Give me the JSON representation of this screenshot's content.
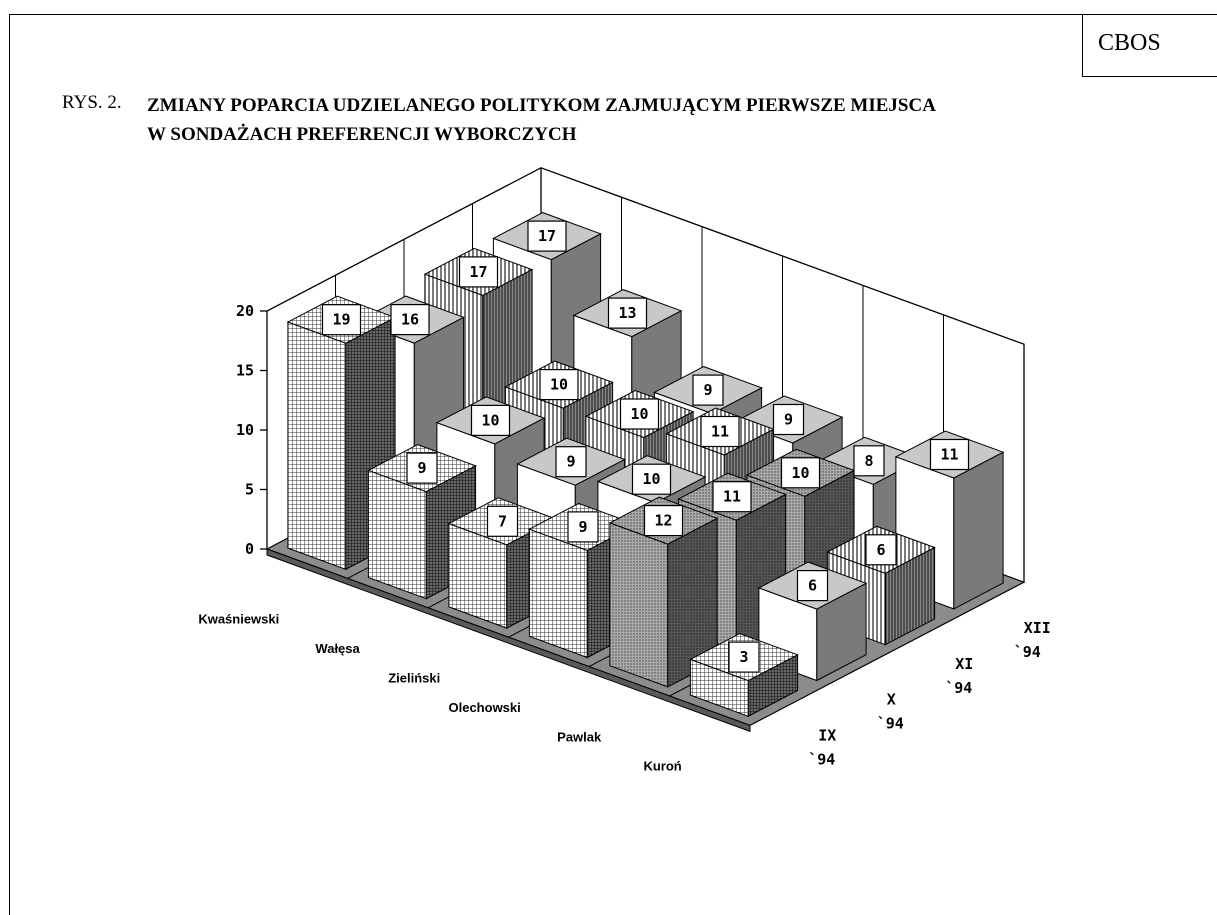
{
  "header": {
    "source": "CBOS",
    "figure_number": "RYS. 2.",
    "title_line1": "ZMIANY POPARCIA UDZIELANEGO POLITYKOM ZAJMUJĄCYM PIERWSZE MIEJSCA",
    "title_line2": "W SONDAŻACH PREFERENCJI WYBORCZYCH"
  },
  "chart_data": {
    "type": "bar",
    "title": "ZMIANY POPARCIA UDZIELANEGO POLITYKOM ZAJMUJĄCYM PIERWSZE MIEJSCA W SONDAŻACH PREFERENCJI WYBORCZYCH",
    "categories": [
      "Kwaśniewski",
      "Wałęsa",
      "Zieliński",
      "Olechowski",
      "Pawlak",
      "Kuroń"
    ],
    "series": [
      {
        "name": "IX `94",
        "values": [
          19,
          9,
          7,
          9,
          12,
          3
        ]
      },
      {
        "name": "X `94",
        "values": [
          16,
          10,
          9,
          10,
          11,
          6
        ]
      },
      {
        "name": "XI `94",
        "values": [
          17,
          10,
          10,
          11,
          10,
          6
        ]
      },
      {
        "name": "XII `94",
        "values": [
          17,
          13,
          9,
          9,
          8,
          11
        ]
      }
    ],
    "z_ticks": [
      "0",
      "5",
      "10",
      "15",
      "20"
    ],
    "zlim": [
      0,
      20
    ],
    "grid": true,
    "style": "3d-bars"
  }
}
